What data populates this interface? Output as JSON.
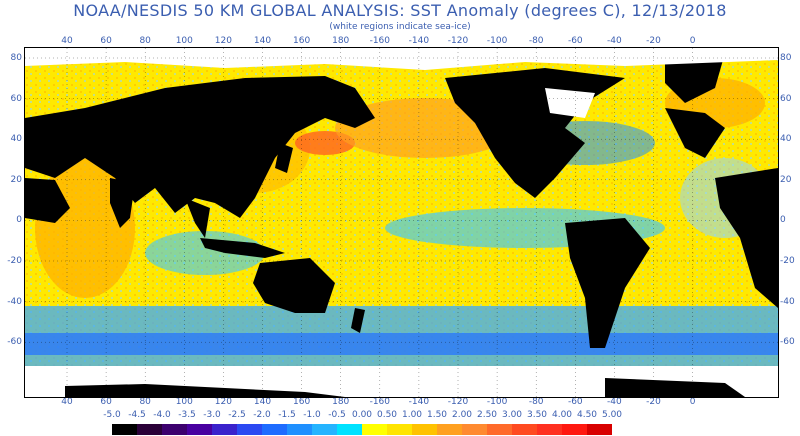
{
  "header": {
    "title": "NOAA/NESDIS 50 KM GLOBAL ANALYSIS: SST Anomaly (degrees C), 12/13/2018",
    "subtitle": "(white regions indicate sea-ice)"
  },
  "axes": {
    "top_lon_labels": [
      "40",
      "60",
      "80",
      "100",
      "120",
      "140",
      "160",
      "180",
      "-160",
      "-140",
      "-120",
      "-100",
      "-80",
      "-60",
      "-40",
      "-20",
      "0"
    ],
    "bottom_lon_labels": [
      "40",
      "60",
      "80",
      "100",
      "120",
      "140",
      "160",
      "180",
      "-160",
      "-140",
      "-120",
      "-100",
      "-80",
      "-60",
      "-40",
      "-20",
      "0"
    ],
    "left_lat_labels": [
      "80",
      "60",
      "40",
      "20",
      "0",
      "-20",
      "-40",
      "-60"
    ],
    "right_lat_labels": [
      "80",
      "60",
      "40",
      "20",
      "0",
      "-20",
      "-40",
      "-60"
    ]
  },
  "colorbar": {
    "labels": [
      "-5.0",
      "-4.5",
      "-4.0",
      "-3.5",
      "-3.0",
      "-2.5",
      "-2.0",
      "-1.5",
      "-1.0",
      "-0.5",
      "0.00",
      "0.50",
      "1.00",
      "1.50",
      "2.00",
      "2.50",
      "3.00",
      "3.50",
      "4.00",
      "4.50",
      "5.00"
    ],
    "colors": [
      "#000000",
      "#2a0038",
      "#3c006e",
      "#4800a0",
      "#3a22cc",
      "#2b49f2",
      "#1e6cff",
      "#1f90ff",
      "#25b4ff",
      "#00e2ff",
      "#ffff00",
      "#ffe400",
      "#ffc200",
      "#ffa020",
      "#ff8a30",
      "#ff6a2a",
      "#ff4a20",
      "#ff3020",
      "#ff1810",
      "#d80000"
    ]
  },
  "map_colors": {
    "land": "#000000",
    "sea_ice": "#ffffff",
    "ocean_base": "#ffe900"
  }
}
